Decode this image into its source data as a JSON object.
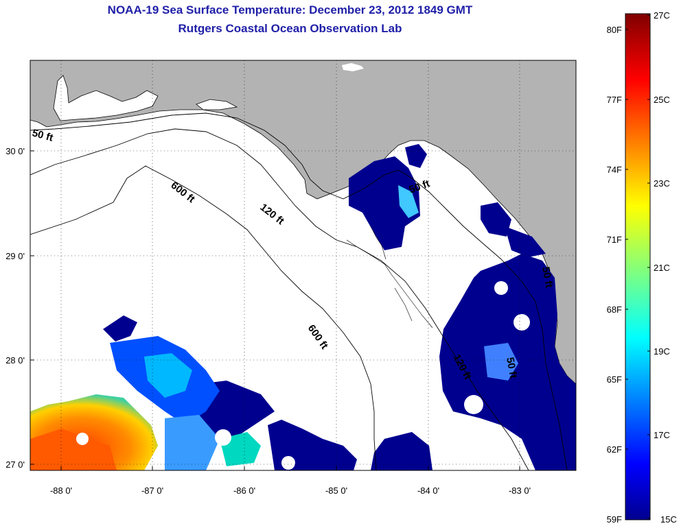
{
  "header": {
    "title": "NOAA-19 Sea Surface Temperature:  December 23, 2012 1849 GMT",
    "subtitle": "Rutgers Coastal Ocean Observation Lab"
  },
  "axes": {
    "lon_ticks": [
      "-88 0'",
      "-87 0'",
      "-86 0'",
      "-85 0'",
      "-84 0'",
      "-83 0'"
    ],
    "lat_ticks": [
      "30 0'",
      "29 0'",
      "28 0'",
      "27 0'"
    ],
    "lon_range": [
      -88.35,
      -82.4
    ],
    "lat_range": [
      26.95,
      30.9
    ]
  },
  "contours": {
    "labels": [
      "50 ft",
      "600 ft",
      "120 ft",
      "50 ft",
      "600 ft",
      "120 ft",
      "50 ft",
      "50 ft"
    ]
  },
  "colorbar": {
    "fahrenheit": [
      "80F",
      "77F",
      "74F",
      "71F",
      "68F",
      "65F",
      "62F",
      "59F"
    ],
    "celsius": [
      "27C",
      "25C",
      "23C",
      "21C",
      "19C",
      "17C",
      "15C"
    ]
  },
  "colors": {
    "land": "#b3b3b3",
    "title": "#1f1fa8",
    "cold": "#00008f",
    "warm": "#ff5a00"
  }
}
